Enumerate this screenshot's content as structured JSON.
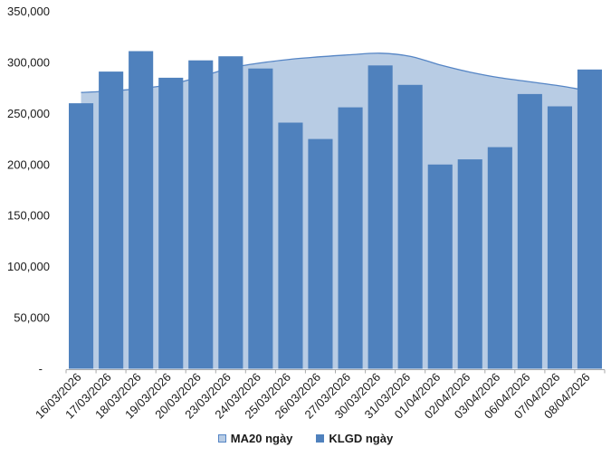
{
  "chart_data": {
    "type": "bar",
    "title": "",
    "categories": [
      "16/03/2026",
      "17/03/2026",
      "18/03/2026",
      "19/03/2026",
      "20/03/2026",
      "23/03/2026",
      "24/03/2026",
      "25/03/2026",
      "26/03/2026",
      "27/03/2026",
      "30/03/2026",
      "31/03/2026",
      "01/04/2026",
      "02/04/2026",
      "03/04/2026",
      "06/04/2026",
      "07/04/2026",
      "08/04/2026"
    ],
    "series": [
      {
        "name": "MA20 ngày",
        "type": "area",
        "color": "#B8CCE4",
        "line_color": "#5585C5",
        "values": [
          270500,
          272000,
          274500,
          278500,
          286000,
          294500,
          299500,
          303000,
          305500,
          307500,
          309000,
          306000,
          297500,
          290500,
          285000,
          281000,
          277000,
          272000
        ]
      },
      {
        "name": "KLGD ngày",
        "type": "bar",
        "color": "#4F81BD",
        "values": [
          260000,
          291000,
          311000,
          285000,
          302000,
          306000,
          294000,
          241000,
          225000,
          256000,
          297000,
          278000,
          200000,
          205000,
          217000,
          269000,
          257000,
          293000
        ]
      }
    ],
    "ylim": [
      0,
      350000
    ],
    "ytick_interval": 50000,
    "ytick_labels_top_to_bottom": [
      "350,000",
      "300,000",
      "250,000",
      "200,000",
      "150,000",
      "100,000",
      "50,000",
      "-"
    ],
    "grid": false,
    "legend_position": "bottom",
    "axis_color": "#A9A9A9",
    "label_color": "#1a1a1a"
  }
}
